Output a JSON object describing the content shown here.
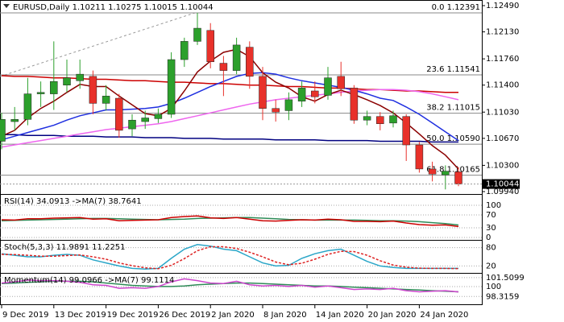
{
  "chart_data": [
    {
      "type": "candlestick",
      "title": "EURUSD,Daily  1.10211 1.10275 1.10015 1.10044",
      "categories": [
        "9 Dec 2019",
        null,
        null,
        null,
        "13 Dec 2019",
        null,
        null,
        null,
        "19 Dec 2019",
        null,
        null,
        null,
        "26 Dec 2019",
        null,
        null,
        null,
        "2 Jan 2020",
        null,
        null,
        null,
        "8 Jan 2020",
        null,
        null,
        null,
        "14 Jan 2020",
        null,
        null,
        null,
        "20 Jan 2020",
        null,
        null,
        null,
        "24 Jan 2020",
        null,
        null,
        null
      ],
      "open": [
        1.1063,
        1.109,
        1.1093,
        1.1128,
        1.1128,
        1.114,
        1.1146,
        1.1152,
        1.1115,
        1.1122,
        1.108,
        1.109,
        1.1094,
        1.11,
        1.1175,
        1.12,
        1.1215,
        1.117,
        1.116,
        1.1192,
        1.1152,
        1.1108,
        1.1105,
        1.1118,
        1.1132,
        1.1126,
        1.1152,
        1.1136,
        1.1092,
        1.1097,
        1.1088,
        1.1097,
        1.1058,
        1.1025,
        1.1017,
        1.10211
      ],
      "high": [
        1.1102,
        1.111,
        1.115,
        1.1145,
        1.12,
        1.1175,
        1.1175,
        1.116,
        1.114,
        1.1128,
        1.11,
        1.1105,
        1.1108,
        1.1185,
        1.1205,
        1.1239,
        1.1225,
        1.118,
        1.1205,
        1.12,
        1.1165,
        1.112,
        1.113,
        1.1145,
        1.1145,
        1.1165,
        1.1172,
        1.114,
        1.1105,
        1.1103,
        1.1105,
        1.11,
        1.1062,
        1.1035,
        1.103,
        1.10275
      ],
      "low": [
        1.1052,
        1.1078,
        1.1085,
        1.111,
        1.1106,
        1.113,
        1.1135,
        1.11,
        1.1105,
        1.1068,
        1.107,
        1.108,
        1.1088,
        1.1095,
        1.1165,
        1.1195,
        1.1163,
        1.1125,
        1.1155,
        1.1135,
        1.1092,
        1.109,
        1.1092,
        1.111,
        1.1115,
        1.112,
        1.1125,
        1.1087,
        1.1085,
        1.1078,
        1.1082,
        1.1036,
        1.102,
        1.1008,
        1.0997,
        1.10015
      ],
      "close": [
        1.1093,
        1.1093,
        1.1128,
        1.113,
        1.1145,
        1.115,
        1.1155,
        1.1115,
        1.1125,
        1.1078,
        1.1092,
        1.1095,
        1.11,
        1.1175,
        1.12,
        1.1218,
        1.1172,
        1.116,
        1.1195,
        1.1152,
        1.1108,
        1.1103,
        1.112,
        1.1136,
        1.1124,
        1.115,
        1.1135,
        1.1092,
        1.1097,
        1.1087,
        1.1098,
        1.1058,
        1.1025,
        1.1018,
        1.1022,
        1.10044
      ],
      "up_color": "#2ca02c",
      "down_color": "#e8312a",
      "series": [
        {
          "color": "#cc0000",
          "values": [
            1.1153,
            1.1152,
            1.1152,
            1.1151,
            1.115,
            1.115,
            1.1149,
            1.1148,
            1.1148,
            1.1147,
            1.1146,
            1.1146,
            1.1145,
            1.1144,
            1.1144,
            1.1143,
            1.1142,
            1.1142,
            1.1141,
            1.114,
            1.114,
            1.1139,
            1.1138,
            1.1138,
            1.1137,
            1.1136,
            1.1136,
            1.1135,
            1.1134,
            1.1134,
            1.1133,
            1.1132,
            1.1132,
            1.1131,
            1.113,
            1.113
          ]
        },
        {
          "color": "#000080",
          "values": [
            1.1072,
            1.1072,
            1.1071,
            1.1071,
            1.1071,
            1.107,
            1.107,
            1.107,
            1.1069,
            1.1069,
            1.1069,
            1.1068,
            1.1068,
            1.1068,
            1.1067,
            1.1067,
            1.1067,
            1.1066,
            1.1066,
            1.1066,
            1.1066,
            1.1065,
            1.1065,
            1.1065,
            1.1065,
            1.1064,
            1.1064,
            1.1064,
            1.1064,
            1.1063,
            1.1063,
            1.1063,
            1.1063,
            1.1062,
            1.1062,
            1.1062
          ]
        },
        {
          "color": "#ee66ee",
          "values": [
            1.1055,
            1.1058,
            1.1061,
            1.1064,
            1.1067,
            1.107,
            1.1073,
            1.1076,
            1.1079,
            1.1081,
            1.1083,
            1.1085,
            1.1087,
            1.109,
            1.1094,
            1.1098,
            1.1102,
            1.1106,
            1.111,
            1.1114,
            1.1117,
            1.112,
            1.1122,
            1.1124,
            1.1126,
            1.1128,
            1.113,
            1.1132,
            1.1133,
            1.1134,
            1.1134,
            1.1133,
            1.1131,
            1.1128,
            1.1124,
            1.112
          ]
        },
        {
          "color": "#1f2fe0",
          "values": [
            1.1065,
            1.107,
            1.1075,
            1.108,
            1.1085,
            1.1092,
            1.1098,
            1.1102,
            1.1106,
            1.1106,
            1.1107,
            1.1108,
            1.111,
            1.1115,
            1.1122,
            1.113,
            1.1138,
            1.1145,
            1.1152,
            1.1156,
            1.1157,
            1.1155,
            1.115,
            1.1146,
            1.1143,
            1.114,
            1.1137,
            1.1133,
            1.1128,
            1.1122,
            1.1119,
            1.111,
            1.11,
            1.1088,
            1.1076,
            1.1064
          ]
        },
        {
          "color": "#8b0000",
          "values": [
            1.107,
            1.1078,
            1.1095,
            1.1108,
            1.1118,
            1.113,
            1.1141,
            1.1138,
            1.1138,
            1.1125,
            1.1113,
            1.1101,
            1.1098,
            1.1108,
            1.1132,
            1.1158,
            1.1173,
            1.1185,
            1.1189,
            1.1179,
            1.1157,
            1.1144,
            1.1136,
            1.1124,
            1.1118,
            1.1127,
            1.1133,
            1.1127,
            1.112,
            1.1112,
            1.1102,
            1.1088,
            1.1073,
            1.1057,
            1.1044,
            1.1025
          ]
        }
      ],
      "levels": [
        {
          "value": 1.12391,
          "label": "0.0 1.12391"
        },
        {
          "value": 1.11541,
          "label": "23.6 1.11541"
        },
        {
          "value": 1.11015,
          "label": "38.2 1.11015"
        },
        {
          "value": 1.1059,
          "label": "50.0 1.10590"
        },
        {
          "value": 1.10165,
          "label": "61.8 1.10165"
        }
      ],
      "last_price": 1.10044,
      "ylim": [
        1.09918,
        1.12545
      ],
      "yticks": [
        {
          "value": 1.1249,
          "label": "1.12490"
        },
        {
          "value": 1.1213,
          "label": "1.12130"
        },
        {
          "value": 1.1176,
          "label": "1.11760"
        },
        {
          "value": 1.114,
          "label": "1.11400"
        },
        {
          "value": 1.1103,
          "label": "1.11030"
        },
        {
          "value": 1.1067,
          "label": "1.10670"
        },
        {
          "value": 1.103,
          "label": "1.10300"
        },
        {
          "value": 1.0994,
          "label": "1.09940"
        }
      ]
    },
    {
      "type": "line",
      "title": "RSI(14) 34.0913 ->MA(7) 38.7641",
      "series": [
        {
          "color": "#2e8b57",
          "values": [
            52,
            53,
            54,
            55,
            56,
            57,
            58,
            59,
            59,
            58,
            57,
            56,
            55,
            56,
            57,
            59,
            60,
            61,
            62,
            62,
            60,
            58,
            56,
            55,
            54,
            54,
            54,
            54,
            53,
            52,
            52,
            51,
            49,
            46,
            43,
            38.7641
          ]
        },
        {
          "color": "#cc0000",
          "values": [
            55,
            54,
            58,
            58,
            60,
            61,
            62,
            57,
            58,
            52,
            53,
            54,
            55,
            62,
            65,
            67,
            61,
            59,
            62,
            57,
            52,
            51,
            53,
            55,
            54,
            57,
            55,
            50,
            50,
            49,
            51,
            45,
            40,
            38,
            39,
            34.0913
          ]
        }
      ],
      "ylim": [
        -5,
        130
      ],
      "yticks": [
        100,
        70,
        30,
        0
      ]
    },
    {
      "type": "line",
      "title": "Stoch(5,3,3) 11.9891 11.2251",
      "series": [
        {
          "color": "#2aa6c8",
          "values": [
            60,
            55,
            50,
            50,
            55,
            58,
            55,
            40,
            30,
            20,
            12,
            10,
            12,
            45,
            75,
            90,
            85,
            75,
            70,
            50,
            30,
            20,
            22,
            45,
            60,
            70,
            75,
            55,
            35,
            20,
            15,
            12,
            12,
            12,
            12,
            11.9891
          ]
        },
        {
          "color": "#dd2222",
          "dashed": true,
          "values": [
            58,
            57,
            55,
            52,
            52,
            54,
            56,
            50,
            42,
            30,
            21,
            14,
            11,
            22,
            44,
            70,
            83,
            83,
            77,
            65,
            50,
            33,
            24,
            29,
            42,
            58,
            68,
            67,
            55,
            37,
            23,
            16,
            13,
            12,
            12,
            11.2251
          ]
        }
      ],
      "ylim": [
        0,
        100
      ],
      "yticks": [
        80,
        20
      ]
    },
    {
      "type": "line",
      "title": "Momentum(14) 99.0966 ->MA(7) 99.1114",
      "series": [
        {
          "color": "#2e8b57",
          "values": [
            100.5,
            100.6,
            100.7,
            100.8,
            100.9,
            100.9,
            100.9,
            100.8,
            100.6,
            100.4,
            100.2,
            100.1,
            100.0,
            100.0,
            100.1,
            100.3,
            100.4,
            100.5,
            100.6,
            100.6,
            100.5,
            100.4,
            100.3,
            100.2,
            100.1,
            100.1,
            100.0,
            99.9,
            99.8,
            99.7,
            99.6,
            99.5,
            99.4,
            99.3,
            99.2,
            99.1114
          ]
        },
        {
          "color": "#cc44cc",
          "values": [
            100.6,
            100.8,
            101.1,
            101.0,
            101.0,
            100.9,
            100.7,
            100.3,
            100.2,
            99.7,
            99.8,
            99.7,
            100.0,
            100.8,
            101.3,
            101.0,
            100.6,
            100.5,
            100.9,
            100.3,
            100.1,
            100.2,
            100.0,
            100.2,
            99.9,
            100.1,
            99.8,
            99.5,
            99.6,
            99.5,
            99.7,
            99.3,
            99.1,
            99.2,
            99.3,
            99.0966
          ]
        }
      ],
      "ylim": [
        96.99,
        102.04
      ],
      "yticks": [
        101.5099,
        100,
        98.3159
      ]
    }
  ]
}
